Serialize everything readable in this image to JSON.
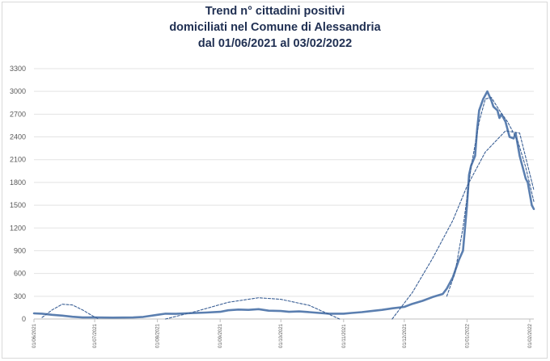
{
  "chart_data": {
    "type": "line",
    "title": [
      "Trend n° cittadini positivi",
      "domiciliati nel Comune di Alessandria",
      "dal 01/06/2021 al 03/02/2022"
    ],
    "xlabel": "",
    "ylabel": "",
    "ylim": [
      0,
      3300
    ],
    "yticks": [
      0,
      300,
      600,
      900,
      1200,
      1500,
      1800,
      2100,
      2400,
      2700,
      3000,
      3300
    ],
    "x_start": "2021-06-01",
    "x_end": "2022-02-03",
    "xticks": [
      "01/06/2021",
      "01/07/2021",
      "01/08/2021",
      "01/09/2021",
      "01/10/2021",
      "01/11/2021",
      "01/12/2021",
      "01/01/2022",
      "01/02/2022"
    ],
    "grid": "horizontal",
    "legend": "none",
    "series": [
      {
        "style": "solid",
        "color": "#5b7fb0",
        "points": [
          [
            "2021-06-01",
            75
          ],
          [
            "2021-06-05",
            70
          ],
          [
            "2021-06-10",
            55
          ],
          [
            "2021-06-15",
            45
          ],
          [
            "2021-06-20",
            30
          ],
          [
            "2021-06-25",
            20
          ],
          [
            "2021-07-01",
            20
          ],
          [
            "2021-07-10",
            18
          ],
          [
            "2021-07-20",
            20
          ],
          [
            "2021-07-25",
            28
          ],
          [
            "2021-08-01",
            55
          ],
          [
            "2021-08-05",
            70
          ],
          [
            "2021-08-10",
            68
          ],
          [
            "2021-08-15",
            75
          ],
          [
            "2021-08-20",
            80
          ],
          [
            "2021-08-25",
            85
          ],
          [
            "2021-09-01",
            95
          ],
          [
            "2021-09-05",
            115
          ],
          [
            "2021-09-10",
            125
          ],
          [
            "2021-09-15",
            120
          ],
          [
            "2021-09-20",
            130
          ],
          [
            "2021-09-25",
            110
          ],
          [
            "2021-10-01",
            105
          ],
          [
            "2021-10-05",
            95
          ],
          [
            "2021-10-10",
            100
          ],
          [
            "2021-10-15",
            90
          ],
          [
            "2021-10-20",
            80
          ],
          [
            "2021-10-25",
            70
          ],
          [
            "2021-11-01",
            70
          ],
          [
            "2021-11-05",
            80
          ],
          [
            "2021-11-10",
            90
          ],
          [
            "2021-11-15",
            105
          ],
          [
            "2021-11-20",
            120
          ],
          [
            "2021-11-25",
            140
          ],
          [
            "2021-12-01",
            160
          ],
          [
            "2021-12-05",
            200
          ],
          [
            "2021-12-10",
            240
          ],
          [
            "2021-12-15",
            290
          ],
          [
            "2021-12-20",
            330
          ],
          [
            "2021-12-22",
            400
          ],
          [
            "2021-12-25",
            550
          ],
          [
            "2021-12-28",
            780
          ],
          [
            "2021-12-30",
            900
          ],
          [
            "2022-01-01",
            1500
          ],
          [
            "2022-01-02",
            1900
          ],
          [
            "2022-01-03",
            2020
          ],
          [
            "2022-01-05",
            2150
          ],
          [
            "2022-01-06",
            2500
          ],
          [
            "2022-01-07",
            2750
          ],
          [
            "2022-01-09",
            2900
          ],
          [
            "2022-01-10",
            2950
          ],
          [
            "2022-01-11",
            3000
          ],
          [
            "2022-01-12",
            2940
          ],
          [
            "2022-01-13",
            2880
          ],
          [
            "2022-01-14",
            2800
          ],
          [
            "2022-01-16",
            2750
          ],
          [
            "2022-01-17",
            2650
          ],
          [
            "2022-01-18",
            2700
          ],
          [
            "2022-01-20",
            2600
          ],
          [
            "2022-01-21",
            2500
          ],
          [
            "2022-01-22",
            2400
          ],
          [
            "2022-01-24",
            2380
          ],
          [
            "2022-01-25",
            2450
          ],
          [
            "2022-01-26",
            2300
          ],
          [
            "2022-01-27",
            2150
          ],
          [
            "2022-01-28",
            2050
          ],
          [
            "2022-01-29",
            1950
          ],
          [
            "2022-01-30",
            1850
          ],
          [
            "2022-01-31",
            1800
          ],
          [
            "2022-02-01",
            1650
          ],
          [
            "2022-02-02",
            1500
          ],
          [
            "2022-02-03",
            1450
          ]
        ]
      },
      {
        "style": "dashed",
        "color": "#3a5f95",
        "points": [
          [
            "2021-06-05",
            20
          ],
          [
            "2021-06-10",
            120
          ],
          [
            "2021-06-15",
            195
          ],
          [
            "2021-06-20",
            185
          ],
          [
            "2021-06-25",
            120
          ],
          [
            "2021-06-30",
            40
          ],
          [
            "2021-07-03",
            0
          ]
        ]
      },
      {
        "style": "dashed",
        "color": "#3a5f95",
        "points": [
          [
            "2021-08-05",
            0
          ],
          [
            "2021-08-20",
            100
          ],
          [
            "2021-09-05",
            220
          ],
          [
            "2021-09-20",
            280
          ],
          [
            "2021-10-01",
            260
          ],
          [
            "2021-10-15",
            180
          ],
          [
            "2021-10-25",
            60
          ],
          [
            "2021-10-30",
            0
          ]
        ]
      },
      {
        "style": "dashed",
        "color": "#3a5f95",
        "points": [
          [
            "2021-11-25",
            0
          ],
          [
            "2021-12-05",
            350
          ],
          [
            "2021-12-15",
            800
          ],
          [
            "2021-12-25",
            1300
          ],
          [
            "2022-01-01",
            1750
          ],
          [
            "2022-01-10",
            2200
          ],
          [
            "2022-01-20",
            2480
          ],
          [
            "2022-01-27",
            2450
          ],
          [
            "2022-02-03",
            1700
          ]
        ]
      },
      {
        "style": "dashed",
        "color": "#3a5f95",
        "points": [
          [
            "2021-12-22",
            300
          ],
          [
            "2021-12-26",
            600
          ],
          [
            "2021-12-30",
            1200
          ],
          [
            "2022-01-03",
            2000
          ],
          [
            "2022-01-07",
            2600
          ],
          [
            "2022-01-10",
            2900
          ],
          [
            "2022-01-13",
            2920
          ],
          [
            "2022-01-17",
            2750
          ],
          [
            "2022-01-21",
            2600
          ],
          [
            "2022-01-26",
            2350
          ],
          [
            "2022-01-30",
            2000
          ],
          [
            "2022-02-03",
            1550
          ]
        ]
      }
    ]
  }
}
